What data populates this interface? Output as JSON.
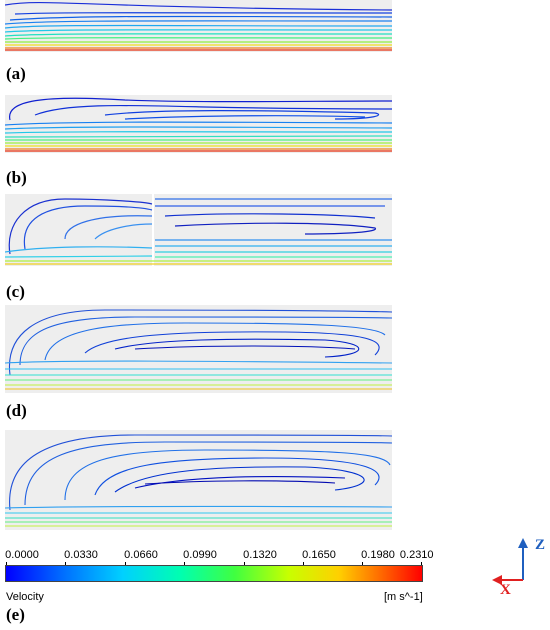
{
  "panels": [
    {
      "label": "(a)"
    },
    {
      "label": "(b)"
    },
    {
      "label": "(c)"
    },
    {
      "label": "(d)"
    },
    {
      "label": "(e)"
    }
  ],
  "colorbar": {
    "title": "Velocity",
    "unit": "[m s^-1]",
    "ticks": [
      "0.0000",
      "0.0330",
      "0.0660",
      "0.0990",
      "0.1320",
      "0.1650",
      "0.1980",
      "0.2310"
    ],
    "min": 0.0,
    "max": 0.231,
    "colors": [
      "#0000ff",
      "#0070ff",
      "#00d0ff",
      "#00ffb0",
      "#40ff40",
      "#c8ff00",
      "#ffd000",
      "#ff6000",
      "#ff0000"
    ]
  },
  "axes": {
    "z_label": "Z",
    "x_label": "X",
    "z_color": "#1f5fbf",
    "x_color": "#e02020"
  }
}
